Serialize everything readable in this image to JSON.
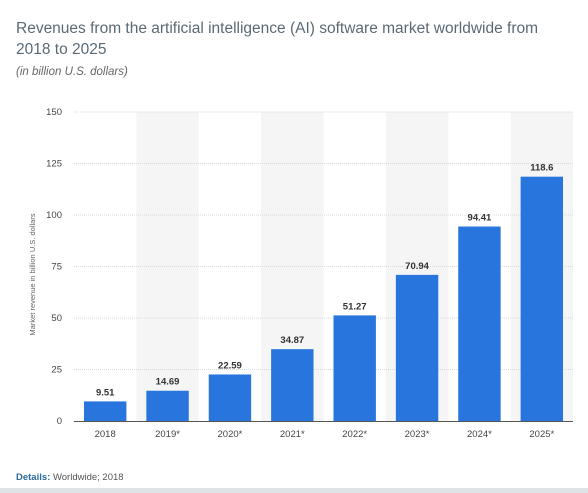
{
  "title": "Revenues from the artificial intelligence (AI) software market worldwide from 2018 to 2025",
  "subtitle": "(in billion U.S. dollars)",
  "details_label": "Details:",
  "details_text": " Worldwide; 2018",
  "colors": {
    "bar": "#2876dd",
    "band": "#f5f5f5",
    "grid": "#d9d9d9",
    "axis": "#555555"
  },
  "chart_data": {
    "type": "bar",
    "categories": [
      "2018",
      "2019*",
      "2020*",
      "2021*",
      "2022*",
      "2023*",
      "2024*",
      "2025*"
    ],
    "values": [
      9.51,
      14.69,
      22.59,
      34.87,
      51.27,
      70.94,
      94.41,
      118.6
    ],
    "value_labels": [
      "9.51",
      "14.69",
      "22.59",
      "34.87",
      "51.27",
      "70.94",
      "94.41",
      "118.6"
    ],
    "ylabel": "Market revenue in billion U.S. dollars",
    "ylim": [
      0,
      150
    ],
    "yticks": [
      0,
      25,
      50,
      75,
      100,
      125,
      150
    ],
    "grid": true,
    "legend": "none"
  }
}
